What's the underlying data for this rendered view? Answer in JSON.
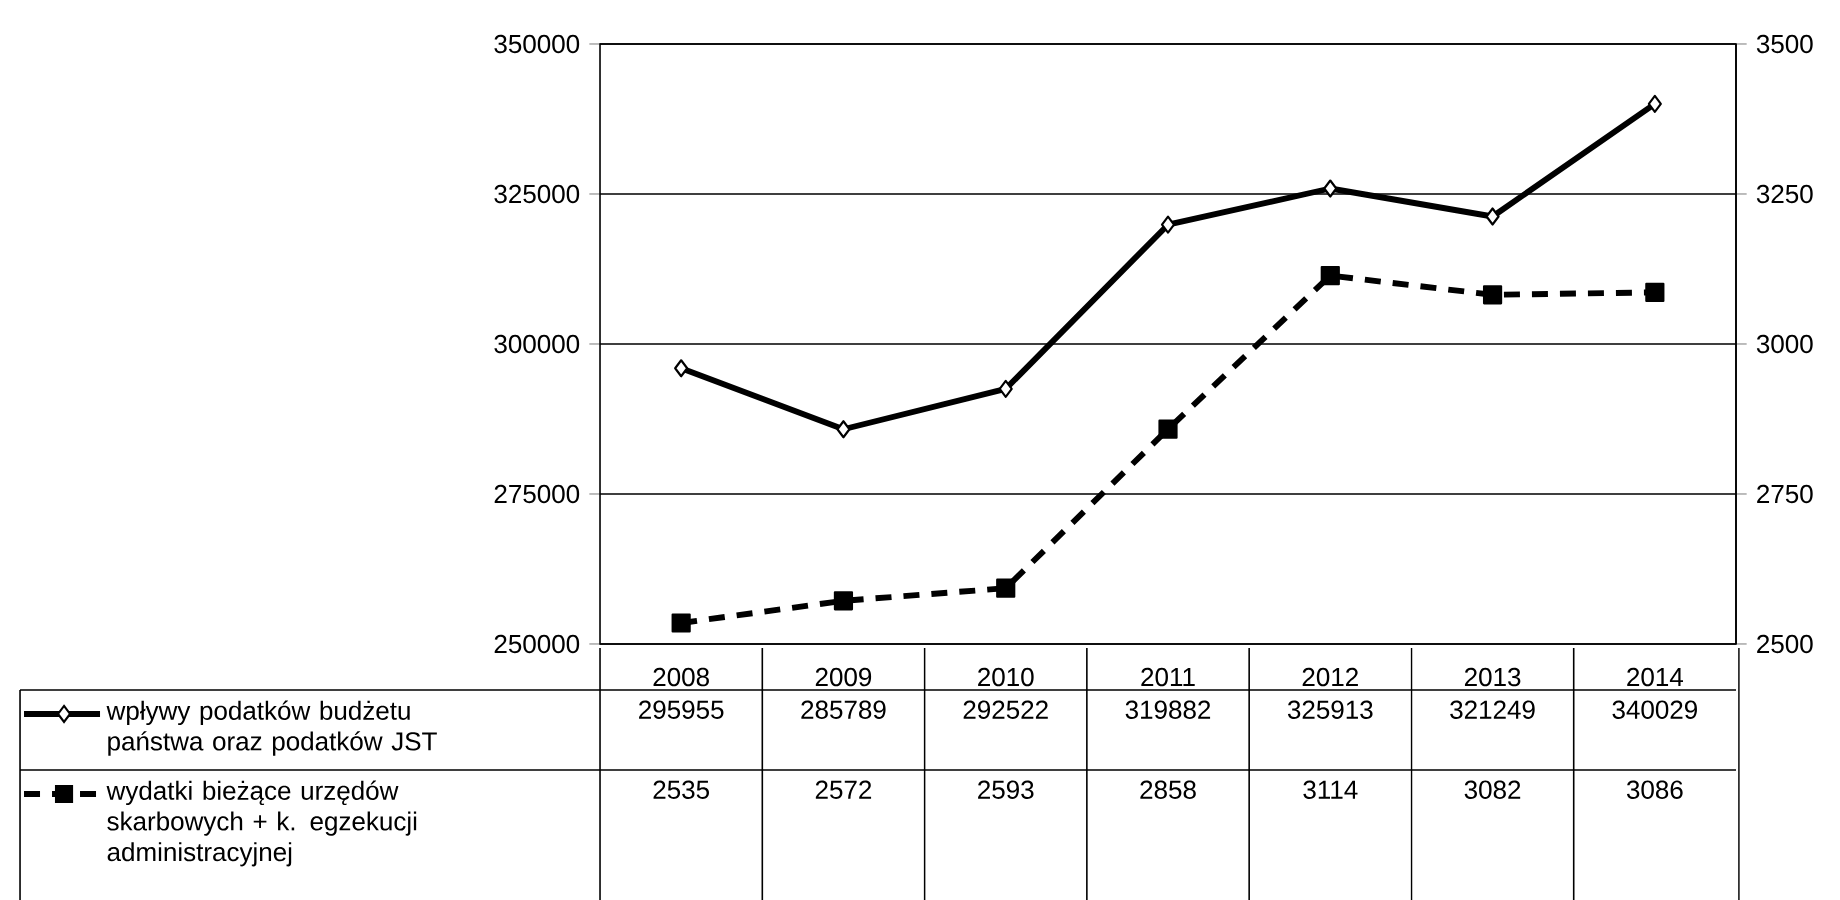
{
  "chart_data": {
    "type": "line",
    "categories": [
      "2008",
      "2009",
      "2010",
      "2011",
      "2012",
      "2013",
      "2014"
    ],
    "series": [
      {
        "name": "wpływy podatków budżetu państwa oraz podatków JST",
        "color": "#000000",
        "marker": "diamond",
        "line_style": "solid",
        "axis": "y",
        "values": [
          295955,
          285789,
          292522,
          319882,
          325913,
          321249,
          340029
        ]
      },
      {
        "name": "wydatki bieżące urzędów skarbowych + k. egzekucji administracyjnej",
        "color": "#000000",
        "marker": "square",
        "line_style": "dashed",
        "axis": "y2",
        "values": [
          2535,
          2572,
          2593,
          2858,
          3114,
          3082,
          3086
        ]
      }
    ],
    "ylim": [
      250000,
      350000
    ],
    "yticks": [
      250000,
      275000,
      300000,
      325000,
      350000
    ],
    "y2lim": [
      2500,
      3500
    ],
    "y2ticks": [
      2500,
      2750,
      3000,
      3250,
      3500
    ],
    "grid": "y",
    "legend": "bottom",
    "data_labels": true
  }
}
